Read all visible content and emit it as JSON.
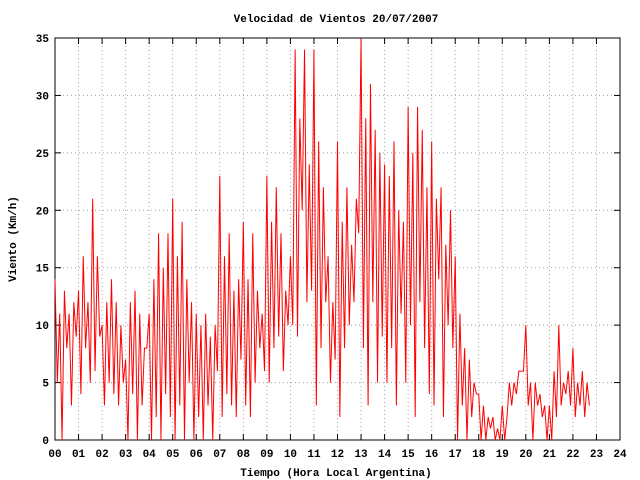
{
  "chart_data": {
    "type": "line",
    "title": "Velocidad de Vientos 20/07/2007",
    "xlabel": "Tiempo (Hora Local Argentina)",
    "ylabel": "Viento (Km/h)",
    "x": [
      0.0,
      0.1,
      0.2,
      0.3,
      0.4,
      0.5,
      0.6,
      0.7,
      0.8,
      0.9,
      1.0,
      1.1,
      1.2,
      1.3,
      1.4,
      1.5,
      1.6,
      1.7,
      1.8,
      1.9,
      2.0,
      2.1,
      2.2,
      2.3,
      2.4,
      2.5,
      2.6,
      2.7,
      2.8,
      2.9,
      3.0,
      3.1,
      3.2,
      3.3,
      3.4,
      3.5,
      3.6,
      3.7,
      3.8,
      3.9,
      4.0,
      4.1,
      4.2,
      4.3,
      4.4,
      4.5,
      4.6,
      4.7,
      4.8,
      4.9,
      5.0,
      5.1,
      5.2,
      5.3,
      5.4,
      5.5,
      5.6,
      5.7,
      5.8,
      5.9,
      6.0,
      6.1,
      6.2,
      6.3,
      6.4,
      6.5,
      6.6,
      6.7,
      6.8,
      6.9,
      7.0,
      7.1,
      7.2,
      7.3,
      7.4,
      7.5,
      7.6,
      7.7,
      7.8,
      7.9,
      8.0,
      8.1,
      8.2,
      8.3,
      8.4,
      8.5,
      8.6,
      8.7,
      8.8,
      8.9,
      9.0,
      9.1,
      9.2,
      9.3,
      9.4,
      9.5,
      9.6,
      9.7,
      9.8,
      9.9,
      10.0,
      10.1,
      10.2,
      10.3,
      10.4,
      10.5,
      10.6,
      10.7,
      10.8,
      10.9,
      11.0,
      11.1,
      11.2,
      11.3,
      11.4,
      11.5,
      11.6,
      11.7,
      11.8,
      11.9,
      12.0,
      12.1,
      12.2,
      12.3,
      12.4,
      12.5,
      12.6,
      12.7,
      12.8,
      12.9,
      13.0,
      13.1,
      13.2,
      13.3,
      13.4,
      13.5,
      13.6,
      13.7,
      13.8,
      13.9,
      14.0,
      14.1,
      14.2,
      14.3,
      14.4,
      14.5,
      14.6,
      14.7,
      14.8,
      14.9,
      15.0,
      15.1,
      15.2,
      15.3,
      15.4,
      15.5,
      15.6,
      15.7,
      15.8,
      15.9,
      16.0,
      16.1,
      16.2,
      16.3,
      16.4,
      16.5,
      16.6,
      16.7,
      16.8,
      16.9,
      17.0,
      17.1,
      17.2,
      17.3,
      17.4,
      17.5,
      17.6,
      17.7,
      17.8,
      17.9,
      18.0,
      18.1,
      18.2,
      18.3,
      18.4,
      18.5,
      18.6,
      18.7,
      18.8,
      18.9,
      19.0,
      19.1,
      19.2,
      19.3,
      19.4,
      19.5,
      19.6,
      19.7,
      19.8,
      19.9,
      20.0,
      20.1,
      20.2,
      20.3,
      20.4,
      20.5,
      20.6,
      20.7,
      20.8,
      20.9,
      21.0,
      21.1,
      21.2,
      21.3,
      21.4,
      21.5,
      21.6,
      21.7,
      21.8,
      21.9,
      22.0,
      22.1,
      22.2,
      22.3,
      22.4,
      22.5,
      22.6,
      22.7
    ],
    "series": [
      {
        "color": "#ff0000",
        "values": [
          14,
          5,
          11,
          0,
          13,
          8,
          11,
          3,
          12,
          9,
          13,
          4,
          16,
          8,
          12,
          5,
          21,
          6,
          16,
          9,
          10,
          3,
          12,
          5,
          14,
          4,
          12,
          3,
          10,
          5,
          7,
          0,
          12,
          4,
          13,
          0,
          11,
          3,
          8,
          8,
          11,
          0,
          14,
          2,
          18,
          0,
          15,
          4,
          18,
          2,
          21,
          0,
          16,
          3,
          19,
          0,
          14,
          5,
          12,
          0,
          11,
          2,
          10,
          0,
          11,
          3,
          9,
          0,
          10,
          6,
          23,
          2,
          16,
          4,
          18,
          3,
          13,
          2,
          14,
          7,
          19,
          3,
          14,
          2,
          18,
          5,
          13,
          8,
          11,
          6,
          23,
          5,
          19,
          8,
          22,
          9,
          18,
          6,
          13,
          10,
          16,
          10,
          34,
          9,
          28,
          20,
          34,
          12,
          24,
          13,
          34,
          3,
          26,
          8,
          22,
          12,
          16,
          5,
          12,
          7,
          26,
          2,
          19,
          8,
          22,
          10,
          17,
          12,
          21,
          18,
          35,
          8,
          28,
          3,
          31,
          12,
          27,
          5,
          25,
          9,
          24,
          5,
          23,
          8,
          26,
          3,
          20,
          11,
          19,
          5,
          29,
          10,
          25,
          2,
          29,
          12,
          27,
          8,
          22,
          4,
          26,
          3,
          21,
          14,
          22,
          2,
          17,
          10,
          20,
          8,
          16,
          0,
          11,
          3,
          8,
          0,
          7,
          2,
          5,
          4,
          4,
          0,
          3,
          0,
          2,
          1,
          2,
          0,
          1,
          0,
          3,
          0,
          2,
          5,
          3,
          5,
          4,
          6,
          6,
          6,
          10,
          3,
          5,
          0,
          5,
          3,
          4,
          2,
          3,
          0,
          3,
          0,
          6,
          2,
          10,
          3,
          5,
          4,
          6,
          3,
          8,
          2,
          5,
          3,
          6,
          2,
          5,
          3
        ]
      }
    ],
    "xlim": [
      0,
      24
    ],
    "xticks": [
      {
        "value": 0,
        "label": "00"
      },
      {
        "value": 1,
        "label": "01"
      },
      {
        "value": 2,
        "label": "02"
      },
      {
        "value": 3,
        "label": "03"
      },
      {
        "value": 4,
        "label": "04"
      },
      {
        "value": 5,
        "label": "05"
      },
      {
        "value": 6,
        "label": "06"
      },
      {
        "value": 7,
        "label": "07"
      },
      {
        "value": 8,
        "label": "08"
      },
      {
        "value": 9,
        "label": "09"
      },
      10,
      11,
      12,
      13,
      14,
      15,
      16,
      17,
      18,
      19,
      20,
      21,
      22,
      23,
      24
    ],
    "ylim": [
      0,
      35
    ],
    "yticks": [
      0,
      5,
      10,
      15,
      20,
      25,
      30,
      35
    ],
    "grid": true
  }
}
